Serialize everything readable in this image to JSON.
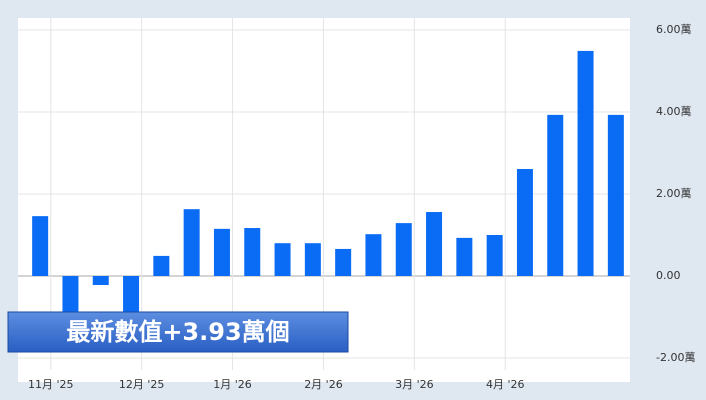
{
  "chart_data": {
    "type": "bar",
    "annotation": "最新數值+3.93萬個",
    "categories": [
      "11月 '25",
      null,
      null,
      "12月 '25",
      null,
      null,
      "1月 '26",
      null,
      null,
      "2月 '26",
      null,
      null,
      "3月 '26",
      null,
      null,
      "4月 '26",
      null,
      null,
      null,
      null
    ],
    "values": [
      1.46,
      -0.95,
      -0.22,
      -0.9,
      0.49,
      1.63,
      1.15,
      1.17,
      0.8,
      0.8,
      0.66,
      1.02,
      1.29,
      1.56,
      0.93,
      1.0,
      2.61,
      3.93,
      5.49,
      3.93
    ],
    "color": "#0a6cf5",
    "ylim": [
      -2,
      6
    ],
    "yticks": [
      {
        "value": -2,
        "label": "-2.00萬"
      },
      {
        "value": 0,
        "label": "0.00"
      },
      {
        "value": 2,
        "label": "2.00萬"
      },
      {
        "value": 4,
        "label": "4.00萬"
      },
      {
        "value": 6,
        "label": "6.00萬"
      }
    ],
    "grid": true
  }
}
